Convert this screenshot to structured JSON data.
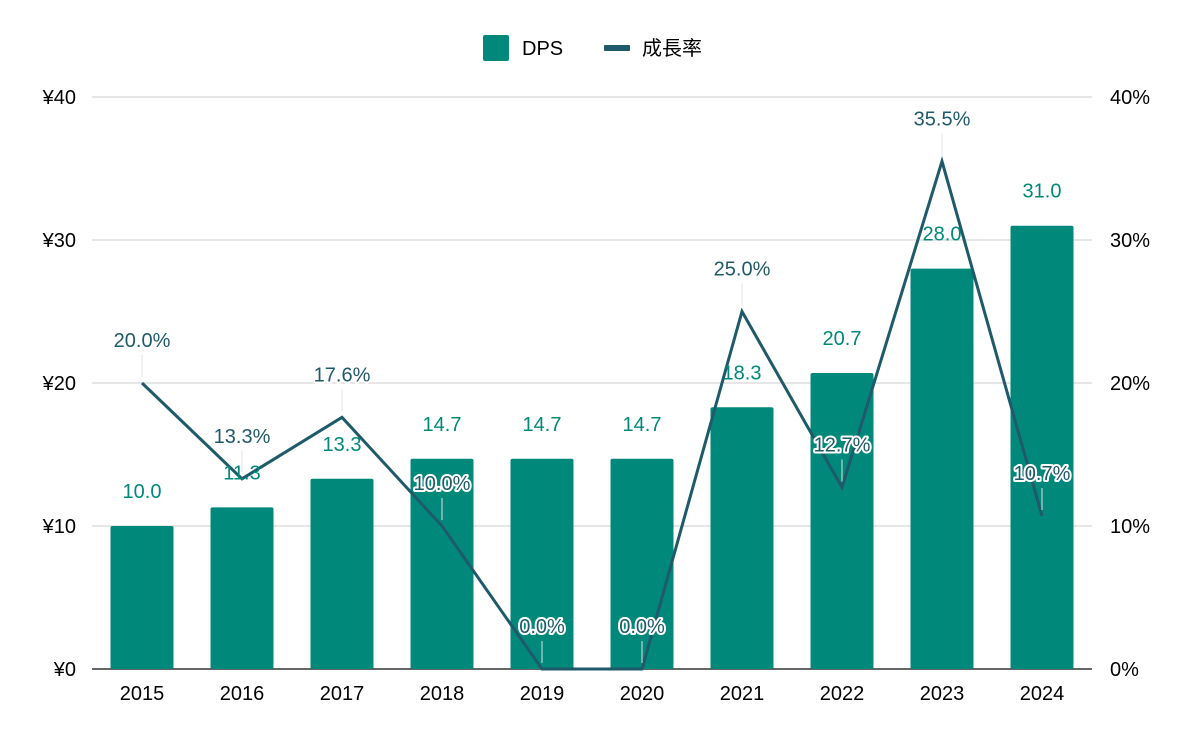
{
  "chart_data": {
    "type": "bar",
    "title": "",
    "categories": [
      "2015",
      "2016",
      "2017",
      "2018",
      "2019",
      "2020",
      "2021",
      "2022",
      "2023",
      "2024"
    ],
    "series": [
      {
        "name": "DPS",
        "type": "bar",
        "axis": "left",
        "values": [
          10.0,
          11.3,
          13.3,
          14.7,
          14.7,
          14.7,
          18.3,
          20.7,
          28.0,
          31.0
        ],
        "labels": [
          "10.0",
          "11.3",
          "13.3",
          "14.7",
          "14.7",
          "14.7",
          "18.3",
          "20.7",
          "28.0",
          "31.0"
        ],
        "color": "#00897b"
      },
      {
        "name": "成長率",
        "type": "line",
        "axis": "right",
        "values": [
          20.0,
          13.3,
          17.6,
          10.0,
          0.0,
          0.0,
          25.0,
          12.7,
          35.5,
          10.7
        ],
        "labels": [
          "20.0%",
          "13.3%",
          "17.6%",
          "10.0%",
          "0.0%",
          "0.0%",
          "25.0%",
          "12.7%",
          "35.5%",
          "10.7%"
        ],
        "color": "#1f5a6b"
      }
    ],
    "y_left": {
      "min": 0,
      "max": 40,
      "ticks": [
        0,
        10,
        20,
        30,
        40
      ],
      "tick_labels": [
        "¥0",
        "¥10",
        "¥20",
        "¥30",
        "¥40"
      ]
    },
    "y_right": {
      "min": 0,
      "max": 40,
      "ticks": [
        0,
        10,
        20,
        30,
        40
      ],
      "tick_labels": [
        "0%",
        "10%",
        "20%",
        "30%",
        "40%"
      ]
    },
    "grid": true,
    "legend_position": "top-center"
  }
}
